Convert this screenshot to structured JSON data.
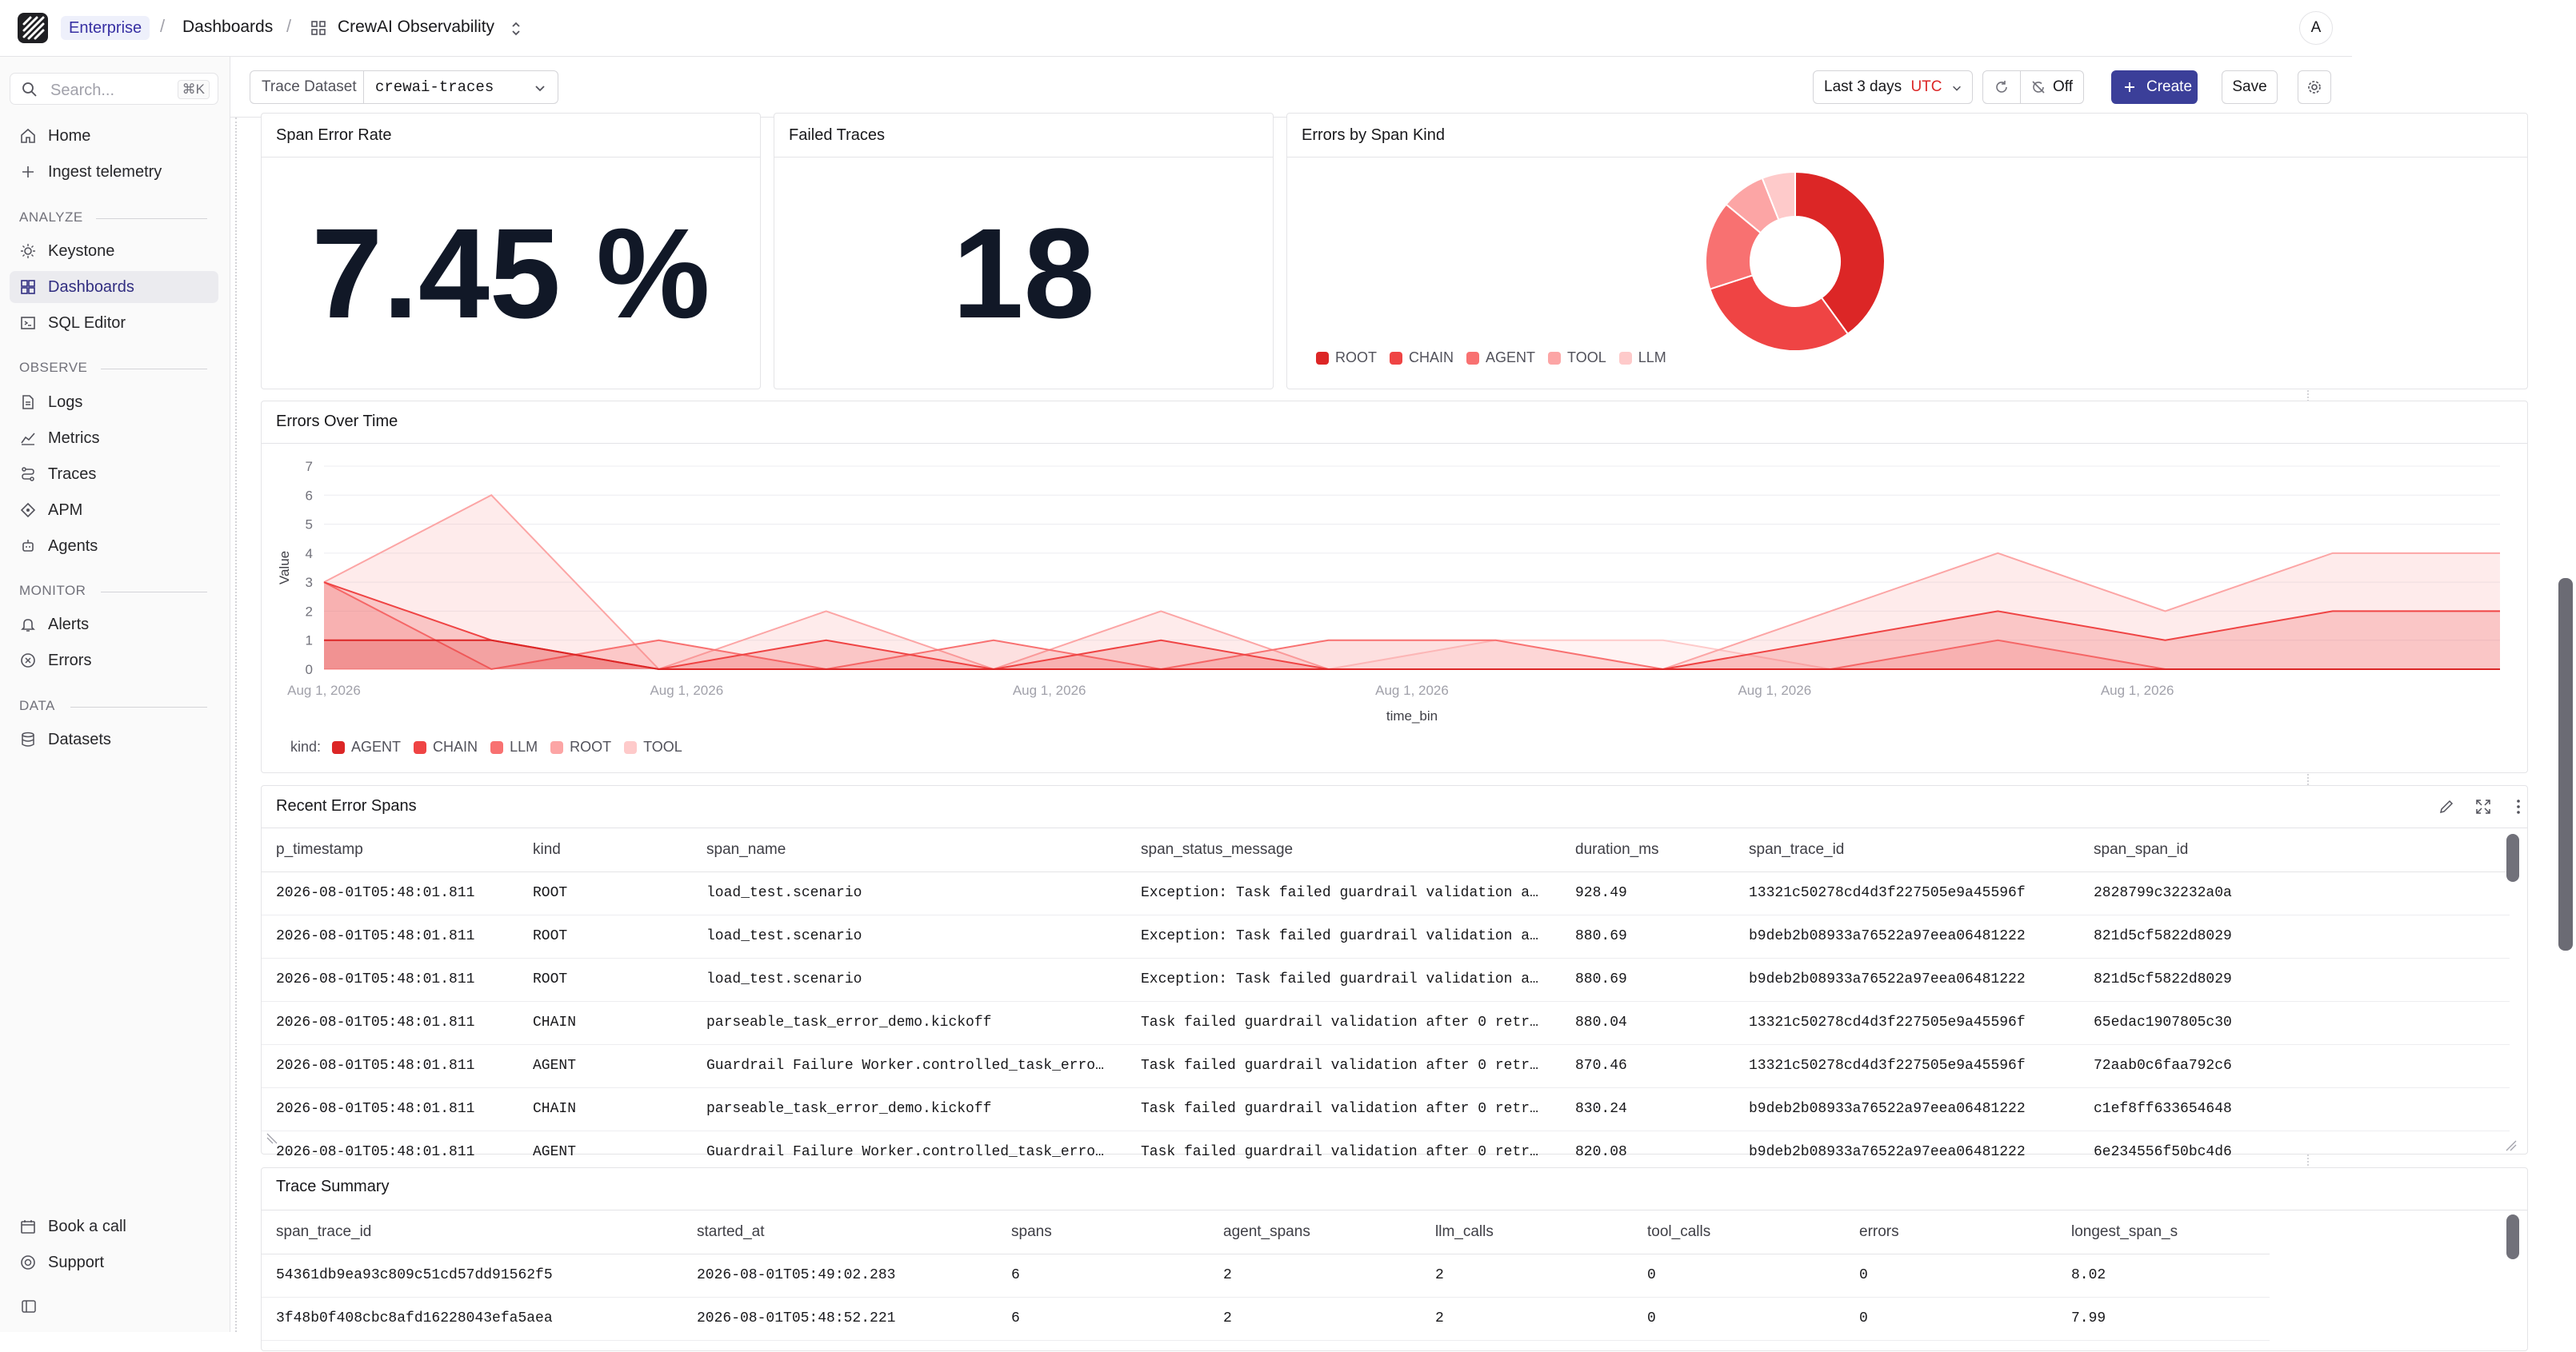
{
  "topbar": {
    "badge": "Enterprise",
    "crumb_dashboards": "Dashboards",
    "crumb_current": "CrewAI Observability",
    "avatar_initial": "A"
  },
  "sidebar": {
    "search_placeholder": "Search...",
    "search_shortcut": "⌘K",
    "home": "Home",
    "ingest": "Ingest telemetry",
    "sections": {
      "analyze": "ANALYZE",
      "observe": "OBSERVE",
      "monitor": "MONITOR",
      "data": "DATA"
    },
    "keystone": "Keystone",
    "dashboards": "Dashboards",
    "sql_editor": "SQL Editor",
    "logs": "Logs",
    "metrics": "Metrics",
    "traces": "Traces",
    "apm": "APM",
    "agents": "Agents",
    "alerts": "Alerts",
    "errors": "Errors",
    "datasets": "Datasets",
    "book_call": "Book a call",
    "support": "Support"
  },
  "toolbar": {
    "dataset_label": "Trace Dataset",
    "dataset_value": "crewai-traces",
    "time_range": "Last 3 days",
    "timezone": "UTC",
    "refresh_off": "Off",
    "create": "Create",
    "save": "Save"
  },
  "panels": {
    "span_error_rate": {
      "title": "Span Error Rate",
      "value": "7.45 %"
    },
    "failed_traces": {
      "title": "Failed Traces",
      "value": "18"
    },
    "errors_by_kind": {
      "title": "Errors by Span Kind",
      "slices": [
        {
          "label": "ROOT",
          "value": 40,
          "color": "#dc2626"
        },
        {
          "label": "CHAIN",
          "value": 30,
          "color": "#ef4444"
        },
        {
          "label": "AGENT",
          "value": 16,
          "color": "#f87171"
        },
        {
          "label": "TOOL",
          "value": 8,
          "color": "#fca5a5"
        },
        {
          "label": "LLM",
          "value": 6,
          "color": "#fecaca"
        }
      ]
    },
    "errors_over_time": {
      "title": "Errors Over Time",
      "legend_prefix": "kind:"
    },
    "recent_error_spans": {
      "title": "Recent Error Spans",
      "columns": [
        "p_timestamp",
        "kind",
        "span_name",
        "span_status_message",
        "duration_ms",
        "span_trace_id",
        "span_span_id"
      ],
      "rows": [
        [
          "2026-08-01T05:48:01.811",
          "ROOT",
          "load_test.scenario",
          "Exception: Task failed guardrail validation a…",
          "928.49",
          "13321c50278cd4d3f227505e9a45596f",
          "2828799c32232a0a"
        ],
        [
          "2026-08-01T05:48:01.811",
          "ROOT",
          "load_test.scenario",
          "Exception: Task failed guardrail validation a…",
          "880.69",
          "b9deb2b08933a76522a97eea06481222",
          "821d5cf5822d8029"
        ],
        [
          "2026-08-01T05:48:01.811",
          "ROOT",
          "load_test.scenario",
          "Exception: Task failed guardrail validation a…",
          "880.69",
          "b9deb2b08933a76522a97eea06481222",
          "821d5cf5822d8029"
        ],
        [
          "2026-08-01T05:48:01.811",
          "CHAIN",
          "parseable_task_error_demo.kickoff",
          "Task failed guardrail validation after 0 retr…",
          "880.04",
          "13321c50278cd4d3f227505e9a45596f",
          "65edac1907805c30"
        ],
        [
          "2026-08-01T05:48:01.811",
          "AGENT",
          "Guardrail Failure Worker.controlled_task_erro…",
          "Task failed guardrail validation after 0 retr…",
          "870.46",
          "13321c50278cd4d3f227505e9a45596f",
          "72aab0c6faa792c6"
        ],
        [
          "2026-08-01T05:48:01.811",
          "CHAIN",
          "parseable_task_error_demo.kickoff",
          "Task failed guardrail validation after 0 retr…",
          "830.24",
          "b9deb2b08933a76522a97eea06481222",
          "c1ef8ff633654648"
        ],
        [
          "2026-08-01T05:48:01.811",
          "AGENT",
          "Guardrail Failure Worker.controlled_task_erro…",
          "Task failed guardrail validation after 0 retr…",
          "820.08",
          "b9deb2b08933a76522a97eea06481222",
          "6e234556f50bc4d6"
        ]
      ]
    },
    "trace_summary": {
      "title": "Trace Summary",
      "columns": [
        "span_trace_id",
        "started_at",
        "spans",
        "agent_spans",
        "llm_calls",
        "tool_calls",
        "errors",
        "longest_span_s"
      ],
      "rows": [
        [
          "54361db9ea93c809c51cd57dd91562f5",
          "2026-08-01T05:49:02.283",
          "6",
          "2",
          "2",
          "0",
          "0",
          "8.02"
        ],
        [
          "3f48b0f408cbc8afd16228043efa5aea",
          "2026-08-01T05:48:52.221",
          "6",
          "2",
          "2",
          "0",
          "0",
          "7.99"
        ]
      ]
    }
  },
  "chart_data": {
    "type": "area",
    "xlabel": "time_bin",
    "ylabel": "Value",
    "ylim": [
      0,
      7
    ],
    "yticks": [
      0,
      1,
      2,
      3,
      4,
      5,
      6,
      7
    ],
    "x_tick_labels": [
      "Aug 1, 2026",
      "Aug 1, 2026",
      "Aug 1, 2026",
      "Aug 1, 2026",
      "Aug 1, 2026",
      "Aug 1, 2026"
    ],
    "grid": true,
    "legend_position": "bottom-left",
    "series": [
      {
        "name": "AGENT",
        "color": "#dc2626",
        "values": [
          1,
          1,
          0,
          0,
          0,
          0,
          0,
          0,
          0,
          0,
          0,
          0,
          0,
          0
        ]
      },
      {
        "name": "CHAIN",
        "color": "#ef4444",
        "values": [
          3,
          1,
          0,
          1,
          0,
          1,
          0,
          0,
          0,
          1,
          2,
          1,
          2,
          2
        ]
      },
      {
        "name": "LLM",
        "color": "#f87171",
        "values": [
          3,
          0,
          1,
          0,
          1,
          0,
          1,
          1,
          0,
          0,
          1,
          0,
          0,
          0
        ]
      },
      {
        "name": "ROOT",
        "color": "#fca5a5",
        "values": [
          3,
          6,
          0,
          2,
          0,
          2,
          0,
          0,
          0,
          2,
          4,
          2,
          4,
          4
        ]
      },
      {
        "name": "TOOL",
        "color": "#fecaca",
        "values": [
          0,
          0,
          1,
          0,
          0,
          0,
          0,
          1,
          1,
          0,
          0,
          0,
          0,
          0
        ]
      }
    ]
  }
}
